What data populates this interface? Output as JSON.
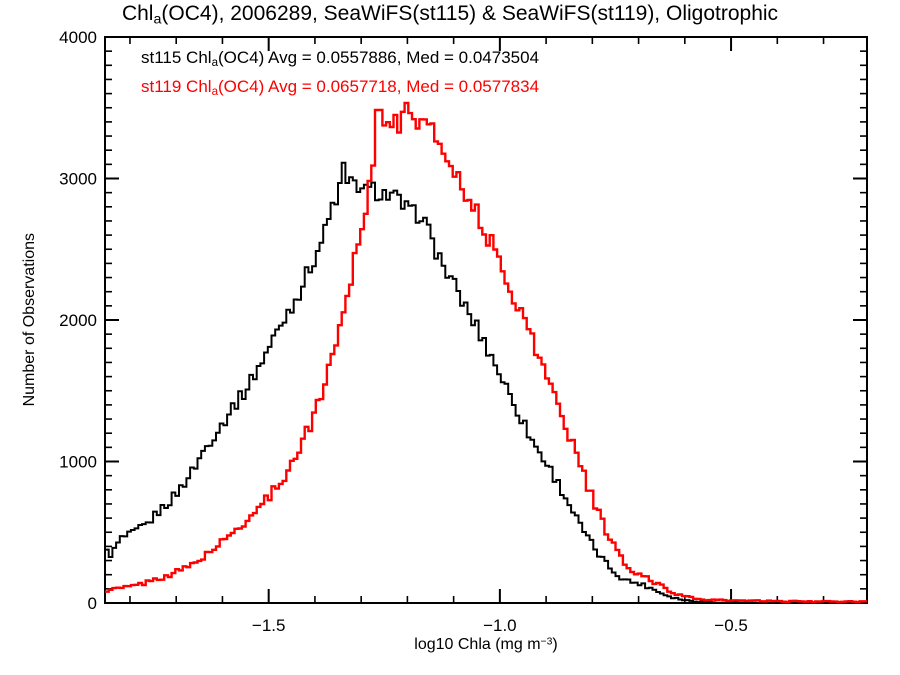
{
  "labels": {
    "title": {
      "pre": "Chl",
      "sub": "a",
      "post": "(OC4), 2006289, SeaWiFS(st115) & SeaWiFS(st119), Oligotrophic"
    },
    "legend": [
      {
        "pre": "st115 Chl",
        "sub": "a",
        "post": "(OC4) Avg = 0.0557886, Med = 0.0473504",
        "color": "#000000"
      },
      {
        "pre": "st119 Chl",
        "sub": "a",
        "post": "(OC4) Avg = 0.0657718, Med = 0.0577834",
        "color": "#ff0000"
      }
    ],
    "xlabel": {
      "pre": "log10 Chla (mg m",
      "sup": "−3",
      "post": ")"
    },
    "ylabel": "Number of Observations"
  },
  "chart_data": {
    "type": "line",
    "subtype": "step-histogram",
    "title": "Chla(OC4), 2006289, SeaWiFS(st115) & SeaWiFS(st119), Oligotrophic",
    "xlabel": "log10 Chla (mg m-3)",
    "ylabel": "Number of Observations",
    "xlim": [
      -1.854,
      -0.206
    ],
    "ylim": [
      0,
      4000
    ],
    "grid": false,
    "legend_position": "top-left-inside",
    "x_major_ticks": [
      {
        "value": -1.5,
        "label": "−1.5"
      },
      {
        "value": -1.0,
        "label": "−1.0"
      },
      {
        "value": -0.5,
        "label": "−0.5"
      }
    ],
    "x_minor_step": 0.1,
    "y_major_ticks": [
      {
        "value": 0,
        "label": "0"
      },
      {
        "value": 1000,
        "label": "1000"
      },
      {
        "value": 2000,
        "label": "2000"
      },
      {
        "value": 3000,
        "label": "3000"
      },
      {
        "value": 4000,
        "label": "4000"
      }
    ],
    "y_minor_step": 100,
    "bin_width": 0.008,
    "series": [
      {
        "name": "st115",
        "sensor": "SeaWiFS",
        "color": "#000000",
        "avg": 0.0557886,
        "med": 0.0473504,
        "points": [
          [
            -1.854,
            370
          ],
          [
            -1.84,
            340
          ],
          [
            -1.82,
            455
          ],
          [
            -1.8,
            480
          ],
          [
            -1.78,
            520
          ],
          [
            -1.76,
            565
          ],
          [
            -1.74,
            640
          ],
          [
            -1.72,
            700
          ],
          [
            -1.7,
            770
          ],
          [
            -1.68,
            860
          ],
          [
            -1.66,
            960
          ],
          [
            -1.64,
            1080
          ],
          [
            -1.62,
            1180
          ],
          [
            -1.6,
            1265
          ],
          [
            -1.58,
            1380
          ],
          [
            -1.56,
            1455
          ],
          [
            -1.54,
            1560
          ],
          [
            -1.52,
            1680
          ],
          [
            -1.5,
            1800
          ],
          [
            -1.48,
            1930
          ],
          [
            -1.46,
            2050
          ],
          [
            -1.44,
            2160
          ],
          [
            -1.42,
            2300
          ],
          [
            -1.4,
            2450
          ],
          [
            -1.38,
            2600
          ],
          [
            -1.36,
            2820
          ],
          [
            -1.345,
            2930
          ],
          [
            -1.338,
            3090
          ],
          [
            -1.33,
            2940
          ],
          [
            -1.31,
            2970
          ],
          [
            -1.29,
            2900
          ],
          [
            -1.27,
            2920
          ],
          [
            -1.25,
            2890
          ],
          [
            -1.23,
            2870
          ],
          [
            -1.21,
            2810
          ],
          [
            -1.19,
            2740
          ],
          [
            -1.17,
            2760
          ],
          [
            -1.15,
            2580
          ],
          [
            -1.13,
            2440
          ],
          [
            -1.11,
            2300
          ],
          [
            -1.09,
            2190
          ],
          [
            -1.07,
            2060
          ],
          [
            -1.05,
            1950
          ],
          [
            -1.03,
            1820
          ],
          [
            -1.01,
            1690
          ],
          [
            -0.99,
            1550
          ],
          [
            -0.97,
            1420
          ],
          [
            -0.95,
            1280
          ],
          [
            -0.93,
            1150
          ],
          [
            -0.91,
            1040
          ],
          [
            -0.89,
            940
          ],
          [
            -0.87,
            820
          ],
          [
            -0.85,
            700
          ],
          [
            -0.83,
            570
          ],
          [
            -0.81,
            460
          ],
          [
            -0.79,
            360
          ],
          [
            -0.77,
            280
          ],
          [
            -0.75,
            210
          ],
          [
            -0.73,
            165
          ],
          [
            -0.71,
            145
          ],
          [
            -0.7,
            140
          ],
          [
            -0.68,
            115
          ],
          [
            -0.66,
            85
          ],
          [
            -0.64,
            55
          ],
          [
            -0.62,
            35
          ],
          [
            -0.6,
            20
          ],
          [
            -0.57,
            10
          ],
          [
            -0.54,
            5
          ],
          [
            -0.5,
            3
          ],
          [
            -0.45,
            1
          ],
          [
            -0.4,
            0
          ],
          [
            -0.3,
            0
          ],
          [
            -0.206,
            0
          ]
        ]
      },
      {
        "name": "st119",
        "sensor": "SeaWiFS",
        "color": "#ff0000",
        "avg": 0.0657718,
        "med": 0.0577834,
        "points": [
          [
            -1.854,
            88
          ],
          [
            -1.83,
            100
          ],
          [
            -1.81,
            110
          ],
          [
            -1.79,
            122
          ],
          [
            -1.77,
            140
          ],
          [
            -1.75,
            160
          ],
          [
            -1.73,
            182
          ],
          [
            -1.71,
            205
          ],
          [
            -1.69,
            232
          ],
          [
            -1.67,
            266
          ],
          [
            -1.65,
            305
          ],
          [
            -1.63,
            355
          ],
          [
            -1.61,
            405
          ],
          [
            -1.59,
            460
          ],
          [
            -1.57,
            518
          ],
          [
            -1.55,
            578
          ],
          [
            -1.53,
            645
          ],
          [
            -1.51,
            715
          ],
          [
            -1.49,
            790
          ],
          [
            -1.47,
            880
          ],
          [
            -1.45,
            985
          ],
          [
            -1.43,
            1115
          ],
          [
            -1.41,
            1260
          ],
          [
            -1.39,
            1440
          ],
          [
            -1.37,
            1650
          ],
          [
            -1.35,
            1900
          ],
          [
            -1.33,
            2180
          ],
          [
            -1.31,
            2500
          ],
          [
            -1.29,
            2800
          ],
          [
            -1.28,
            3000
          ],
          [
            -1.27,
            3200
          ],
          [
            -1.265,
            3560
          ],
          [
            -1.255,
            3400
          ],
          [
            -1.245,
            3480
          ],
          [
            -1.235,
            3420
          ],
          [
            -1.225,
            3380
          ],
          [
            -1.215,
            3350
          ],
          [
            -1.2,
            3530
          ],
          [
            -1.19,
            3480
          ],
          [
            -1.18,
            3400
          ],
          [
            -1.17,
            3450
          ],
          [
            -1.16,
            3380
          ],
          [
            -1.14,
            3290
          ],
          [
            -1.12,
            3190
          ],
          [
            -1.1,
            3080
          ],
          [
            -1.08,
            2950
          ],
          [
            -1.06,
            2820
          ],
          [
            -1.04,
            2680
          ],
          [
            -1.02,
            2550
          ],
          [
            -1.0,
            2400
          ],
          [
            -0.98,
            2250
          ],
          [
            -0.96,
            2100
          ],
          [
            -0.94,
            1950
          ],
          [
            -0.92,
            1780
          ],
          [
            -0.9,
            1620
          ],
          [
            -0.88,
            1450
          ],
          [
            -0.86,
            1280
          ],
          [
            -0.84,
            1100
          ],
          [
            -0.82,
            920
          ],
          [
            -0.8,
            740
          ],
          [
            -0.78,
            580
          ],
          [
            -0.76,
            440
          ],
          [
            -0.74,
            330
          ],
          [
            -0.72,
            235
          ],
          [
            -0.7,
            190
          ],
          [
            -0.69,
            200
          ],
          [
            -0.67,
            155
          ],
          [
            -0.65,
            120
          ],
          [
            -0.63,
            85
          ],
          [
            -0.61,
            55
          ],
          [
            -0.59,
            38
          ],
          [
            -0.57,
            28
          ],
          [
            -0.55,
            23
          ],
          [
            -0.52,
            19
          ],
          [
            -0.48,
            16
          ],
          [
            -0.44,
            14
          ],
          [
            -0.4,
            12
          ],
          [
            -0.35,
            11
          ],
          [
            -0.3,
            10
          ],
          [
            -0.25,
            9
          ],
          [
            -0.206,
            9
          ]
        ]
      }
    ]
  }
}
